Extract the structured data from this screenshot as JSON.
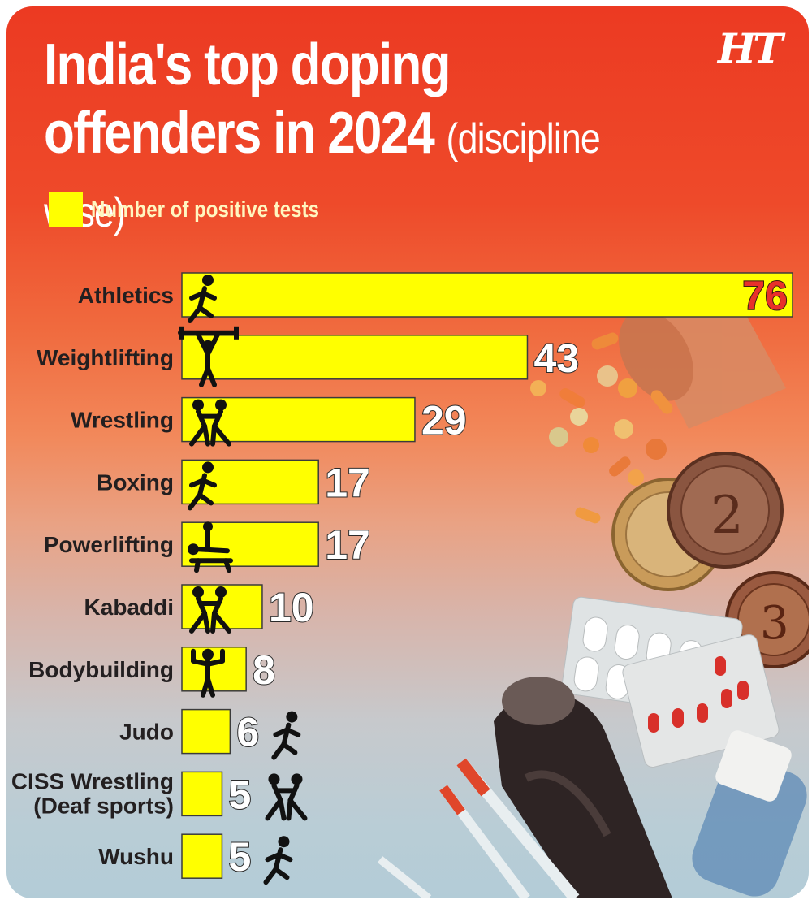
{
  "header": {
    "title_line1": "India's top doping",
    "title_line2": "offenders in 2024",
    "title_suffix": "(discipline wise)",
    "logo": "HT"
  },
  "legend": {
    "label": "Number of positive tests",
    "color": "#ffff00"
  },
  "colors": {
    "bar": "#ffff00",
    "background_top": "#ec3a22",
    "background_bottom": "#b3ccd7",
    "highlight_value": "#e8302a"
  },
  "chart_data": {
    "type": "bar",
    "orientation": "horizontal",
    "categories": [
      "Athletics",
      "Weightlifting",
      "Wrestling",
      "Boxing",
      "Powerlifting",
      "Kabaddi",
      "Bodybuilding",
      "Judo",
      "CISS Wrestling (Deaf sports)",
      "Wushu"
    ],
    "category_lines": [
      [
        "Athletics"
      ],
      [
        "Weightlifting"
      ],
      [
        "Wrestling"
      ],
      [
        "Boxing"
      ],
      [
        "Powerlifting"
      ],
      [
        "Kabaddi"
      ],
      [
        "Bodybuilding"
      ],
      [
        "Judo"
      ],
      [
        "CISS Wrestling",
        "(Deaf sports)"
      ],
      [
        "Wushu"
      ]
    ],
    "values": [
      76,
      43,
      29,
      17,
      17,
      10,
      8,
      6,
      5,
      5
    ],
    "icons": [
      "runner-icon",
      "weightlifter-icon",
      "wrestlers-icon",
      "boxer-icon",
      "powerlifter-icon",
      "kabaddi-players-icon",
      "bodybuilder-icon",
      "judoka-icon",
      "wrestlers-icon",
      "wushu-fighter-icon"
    ],
    "legend": "Number of positive tests",
    "xlim": [
      0,
      76
    ],
    "grid": false,
    "legend_position": "top-left"
  }
}
